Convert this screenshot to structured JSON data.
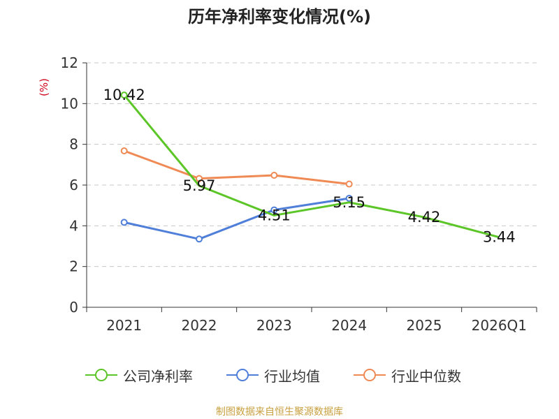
{
  "chart_data": {
    "type": "line",
    "title": "历年净利率变化情况(%)",
    "ylabel": "(%)",
    "xlabel": "",
    "ylim": [
      0,
      12
    ],
    "yticks": [
      0,
      2,
      4,
      6,
      8,
      10,
      12
    ],
    "grid": "horizontal dashed",
    "legend_position": "bottom",
    "categories": [
      "2021",
      "2022",
      "2023",
      "2024",
      "2025",
      "2026Q1"
    ],
    "series": [
      {
        "name": "公司净利率",
        "color": "#5cc527",
        "values": [
          10.42,
          5.97,
          4.51,
          5.15,
          4.42,
          3.44
        ],
        "labels": [
          "10.42",
          "5.97",
          "4.51",
          "5.15",
          "4.42",
          "3.44"
        ],
        "markers": [
          true,
          false,
          false,
          false,
          false,
          false
        ]
      },
      {
        "name": "行业均值",
        "color": "#4f7fd8",
        "values": [
          4.17,
          3.35,
          4.78,
          5.35,
          null,
          null
        ],
        "markers": [
          true,
          true,
          true,
          true,
          false,
          false
        ]
      },
      {
        "name": "行业中位数",
        "color": "#f08a55",
        "values": [
          7.68,
          6.32,
          6.48,
          6.05,
          null,
          null
        ],
        "markers": [
          true,
          true,
          true,
          true,
          false,
          false
        ]
      }
    ]
  },
  "source": "制图数据来自恒生聚源数据库"
}
